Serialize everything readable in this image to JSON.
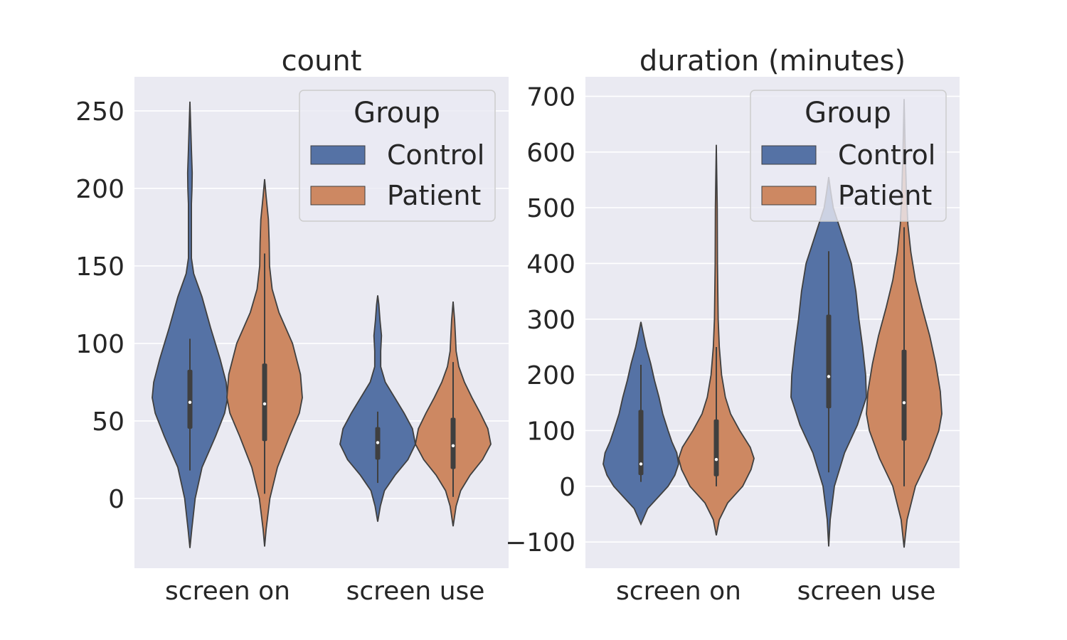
{
  "chart_data": [
    {
      "type": "violin",
      "title": "count",
      "categories": [
        "screen on",
        "screen use"
      ],
      "ylim": [
        -45,
        272
      ],
      "yticks": [
        0,
        50,
        100,
        150,
        200,
        250
      ],
      "ytick_labels": [
        "0",
        "50",
        "100",
        "150",
        "200",
        "250"
      ],
      "grid": true,
      "legend": {
        "title": "Group",
        "placement": "top-right"
      },
      "series": [
        {
          "name": "Control",
          "color": "#5572a5",
          "stats": [
            {
              "category": "screen on",
              "min_extent": -32,
              "max_extent": 256,
              "median": 62,
              "q1": 45,
              "q3": 83,
              "whisker_low": 18,
              "whisker_high": 103
            },
            {
              "category": "screen use",
              "min_extent": -15,
              "max_extent": 131,
              "median": 36,
              "q1": 25,
              "q3": 46,
              "whisker_low": 10,
              "whisker_high": 56
            }
          ]
        },
        {
          "name": "Patient",
          "color": "#cd8862",
          "stats": [
            {
              "category": "screen on",
              "min_extent": -31,
              "max_extent": 206,
              "median": 61,
              "q1": 37,
              "q3": 87,
              "whisker_low": 3,
              "whisker_high": 158
            },
            {
              "category": "screen use",
              "min_extent": -18,
              "max_extent": 127,
              "median": 34,
              "q1": 19,
              "q3": 52,
              "whisker_low": 1,
              "whisker_high": 88
            }
          ]
        }
      ]
    },
    {
      "type": "violin",
      "title": "duration (minutes)",
      "categories": [
        "screen on",
        "screen use"
      ],
      "ylim": [
        -147,
        735
      ],
      "yticks": [
        -100,
        0,
        100,
        200,
        300,
        400,
        500,
        600,
        700
      ],
      "ytick_labels": [
        "−100",
        "0",
        "100",
        "200",
        "300",
        "400",
        "500",
        "600",
        "700"
      ],
      "grid": true,
      "legend": {
        "title": "Group",
        "placement": "top-right"
      },
      "series": [
        {
          "name": "Control",
          "color": "#5572a5",
          "stats": [
            {
              "category": "screen on",
              "min_extent": -68,
              "max_extent": 295,
              "median": 40,
              "q1": 20,
              "q3": 137,
              "whisker_low": 8,
              "whisker_high": 218
            },
            {
              "category": "screen use",
              "min_extent": -108,
              "max_extent": 555,
              "median": 197,
              "q1": 140,
              "q3": 308,
              "whisker_low": 25,
              "whisker_high": 422
            }
          ]
        },
        {
          "name": "Patient",
          "color": "#cd8862",
          "stats": [
            {
              "category": "screen on",
              "min_extent": -88,
              "max_extent": 613,
              "median": 48,
              "q1": 18,
              "q3": 120,
              "whisker_low": 0,
              "whisker_high": 250
            },
            {
              "category": "screen use",
              "min_extent": -110,
              "max_extent": 695,
              "median": 150,
              "q1": 82,
              "q3": 245,
              "whisker_low": 0,
              "whisker_high": 465
            }
          ]
        }
      ]
    }
  ]
}
